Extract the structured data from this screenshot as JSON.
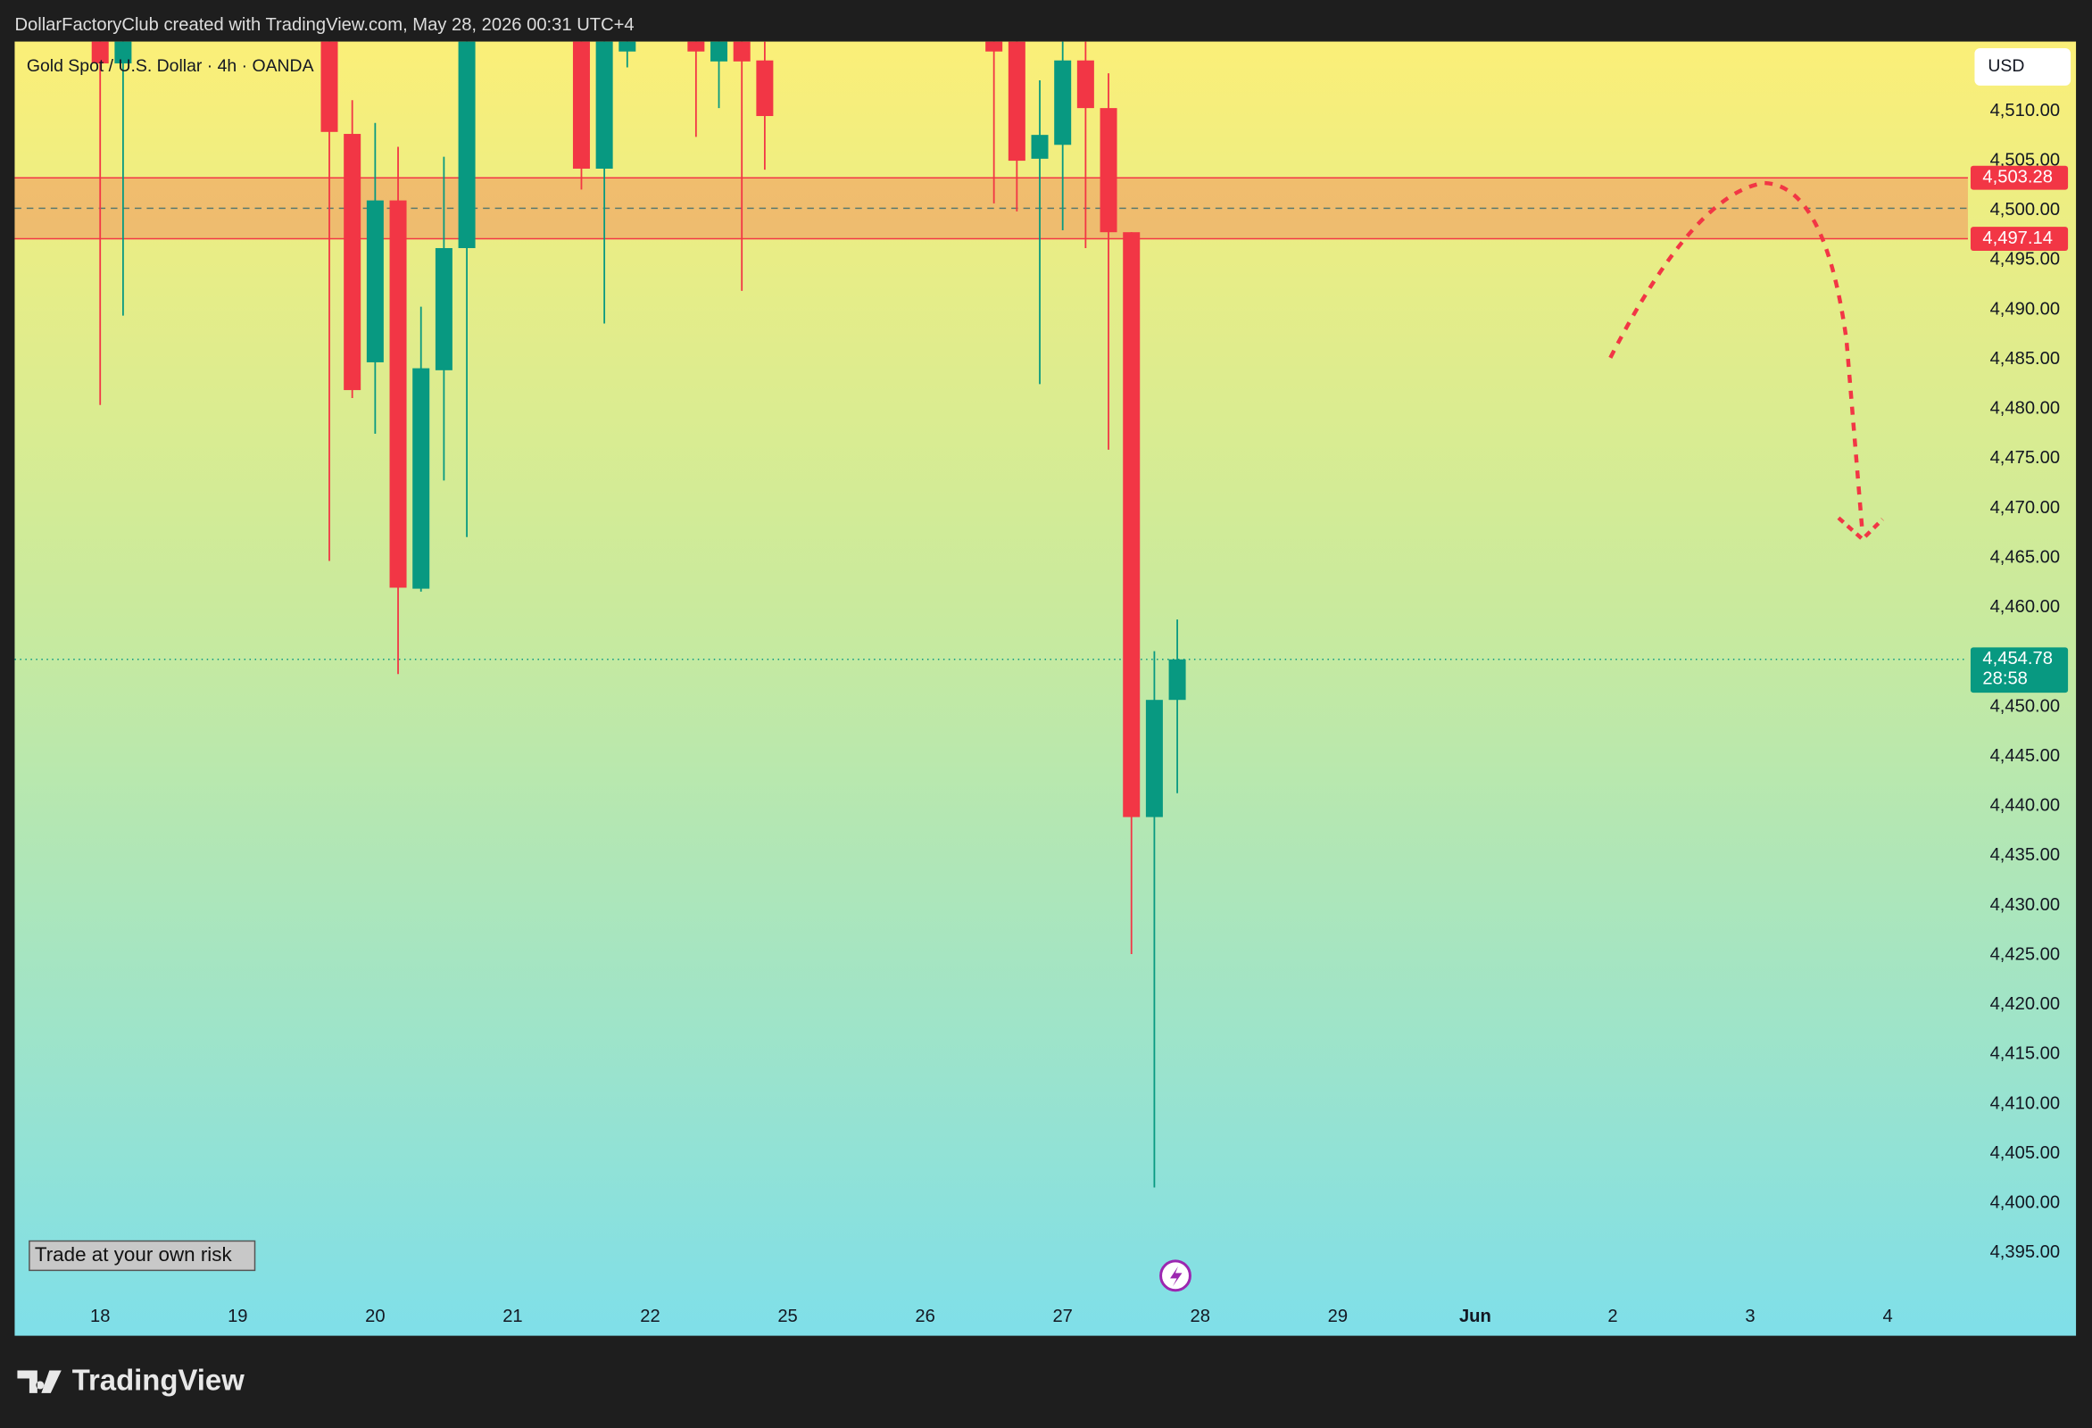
{
  "header": "DollarFactoryClub created with TradingView.com, May 28, 2026 00:31 UTC+4",
  "chart_data": {
    "type": "candlestick",
    "title": "Gold Spot / U.S. Dollar · 4h · OANDA",
    "currency": "USD",
    "up_color": "#089981",
    "down_color": "#f23645",
    "x": [
      0,
      1,
      10,
      11,
      12,
      13,
      14,
      15,
      16,
      21,
      22,
      23,
      26,
      27,
      28,
      29,
      39,
      40,
      41,
      42,
      43,
      44,
      45,
      46,
      47
    ],
    "open": [
      4520,
      4514.8,
      4518,
      4507.7,
      4484.7,
      4501.0,
      4461.9,
      4483.9,
      4496.2,
      4518,
      4504.2,
      4516,
      4520,
      4515,
      4517,
      4515.1,
      4519,
      4517,
      4505.2,
      4506.6,
      4515.1,
      4510.3,
      4497.8,
      4438.9,
      4450.7
    ],
    "high": [
      4525,
      4525,
      4522,
      4511.1,
      4508.8,
      4506.4,
      4490.3,
      4505.4,
      4522,
      4521,
      4521,
      4521,
      4522,
      4521,
      4520,
      4517,
      4522,
      4520,
      4513.1,
      4517.4,
      4517.4,
      4513.8,
      4497.8,
      4455.6,
      4458.8
    ],
    "low": [
      4480.4,
      4489.4,
      4464.7,
      4481.1,
      4477.5,
      4453.3,
      4461.6,
      4472.8,
      4467.1,
      4502.1,
      4488.6,
      4514.4,
      4507.4,
      4510.3,
      4491.9,
      4504.1,
      4500.7,
      4499.9,
      4482.5,
      4498.0,
      4496.2,
      4475.9,
      4425.1,
      4401.6,
      4441.3
    ],
    "close": [
      4514.8,
      4520,
      4507.9,
      4481.9,
      4501.0,
      4462.0,
      4484.1,
      4496.2,
      4520,
      4504.2,
      4518,
      4519,
      4516,
      4519,
      4515.0,
      4509.5,
      4516,
      4505.0,
      4507.6,
      4515.1,
      4510.3,
      4497.8,
      4438.9,
      4450.7,
      4454.78
    ],
    "xlim": [
      -3.73,
      81.5
    ],
    "xticks": [
      {
        "value": 0,
        "label": "18"
      },
      {
        "value": 6,
        "label": "19"
      },
      {
        "value": 12,
        "label": "20"
      },
      {
        "value": 18,
        "label": "21"
      },
      {
        "value": 24,
        "label": "22"
      },
      {
        "value": 30,
        "label": "25"
      },
      {
        "value": 36,
        "label": "26"
      },
      {
        "value": 42,
        "label": "27"
      },
      {
        "value": 48,
        "label": "28"
      },
      {
        "value": 54,
        "label": "29"
      },
      {
        "value": 60,
        "label": "Jun"
      },
      {
        "value": 66,
        "label": "2"
      },
      {
        "value": 72,
        "label": "3"
      },
      {
        "value": 78,
        "label": "4"
      }
    ],
    "ylim": [
      4386.8,
      4517.0
    ],
    "yticks": [
      {
        "value": 4395,
        "label": "4,395.00"
      },
      {
        "value": 4400,
        "label": "4,400.00"
      },
      {
        "value": 4405,
        "label": "4,405.00"
      },
      {
        "value": 4410,
        "label": "4,410.00"
      },
      {
        "value": 4415,
        "label": "4,415.00"
      },
      {
        "value": 4420,
        "label": "4,420.00"
      },
      {
        "value": 4425,
        "label": "4,425.00"
      },
      {
        "value": 4430,
        "label": "4,430.00"
      },
      {
        "value": 4435,
        "label": "4,435.00"
      },
      {
        "value": 4440,
        "label": "4,440.00"
      },
      {
        "value": 4445,
        "label": "4,445.00"
      },
      {
        "value": 4450,
        "label": "4,450.00"
      },
      {
        "value": 4460,
        "label": "4,460.00"
      },
      {
        "value": 4465,
        "label": "4,465.00"
      },
      {
        "value": 4470,
        "label": "4,470.00"
      },
      {
        "value": 4475,
        "label": "4,475.00"
      },
      {
        "value": 4480,
        "label": "4,480.00"
      },
      {
        "value": 4485,
        "label": "4,485.00"
      },
      {
        "value": 4490,
        "label": "4,490.00"
      },
      {
        "value": 4495,
        "label": "4,495.00"
      },
      {
        "value": 4500,
        "label": "4,500.00"
      },
      {
        "value": 4505,
        "label": "4,505.00"
      },
      {
        "value": 4510,
        "label": "4,510.00"
      }
    ],
    "zone": [
      {
        "value": 4503.28,
        "label": "4,503.28"
      },
      {
        "value": 4497.14,
        "label": "4,497.14"
      }
    ],
    "last_price": {
      "value": 4454.78,
      "label": "4,454.78",
      "countdown": "28:58"
    },
    "note": "Trade at your own risk"
  },
  "footer": "TradingView"
}
